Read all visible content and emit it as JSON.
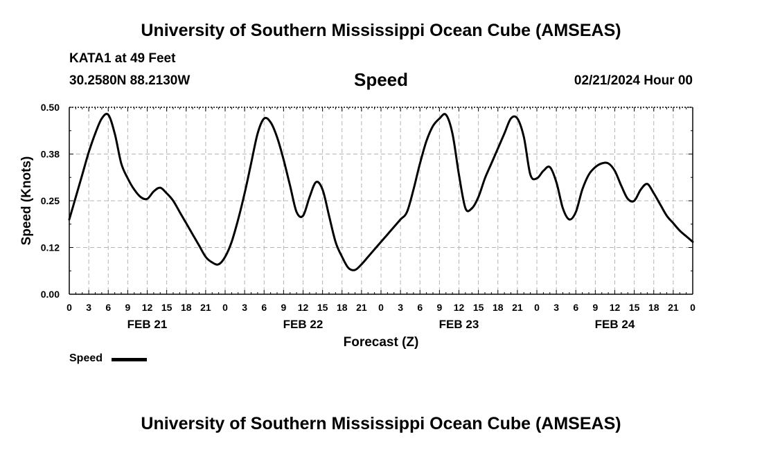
{
  "header": {
    "title": "University of Southern Mississippi Ocean Cube (AMSEAS)",
    "station": "KATA1 at 49 Feet",
    "coords": "30.2580N  88.2130W",
    "plot_title": "Speed",
    "date": "02/21/2024 Hour 00"
  },
  "footer": {
    "title": "University of Southern Mississippi Ocean Cube (AMSEAS)"
  },
  "legend": {
    "label": "Speed"
  },
  "chart_data": {
    "type": "line",
    "title": "Speed",
    "xlabel": "Forecast (Z)",
    "ylabel": "Speed (Knots)",
    "xlim": [
      0,
      96
    ],
    "ylim": [
      0,
      0.5
    ],
    "yticks": [
      0,
      0.125,
      0.25,
      0.375,
      0.5
    ],
    "ytick_labels": [
      "0.00",
      "0.12",
      "0.25",
      "0.38",
      "0.50"
    ],
    "xticks": [
      0,
      3,
      6,
      9,
      12,
      15,
      18,
      21,
      24,
      27,
      30,
      33,
      36,
      39,
      42,
      45,
      48,
      51,
      54,
      57,
      60,
      63,
      66,
      69,
      72,
      75,
      78,
      81,
      84,
      87,
      90,
      93,
      96
    ],
    "xtick_labels": [
      "0",
      "3",
      "6",
      "9",
      "12",
      "15",
      "18",
      "21",
      "0",
      "3",
      "6",
      "9",
      "12",
      "15",
      "18",
      "21",
      "0",
      "3",
      "6",
      "9",
      "12",
      "15",
      "18",
      "21",
      "0",
      "3",
      "6",
      "9",
      "12",
      "15",
      "18",
      "21",
      "0"
    ],
    "day_labels": [
      {
        "hour": 12,
        "label": "FEB 21"
      },
      {
        "hour": 36,
        "label": "FEB 22"
      },
      {
        "hour": 60,
        "label": "FEB 23"
      },
      {
        "hour": 84,
        "label": "FEB 24"
      }
    ],
    "grid": true,
    "series": [
      {
        "name": "Speed",
        "color": "#000000",
        "x": [
          0,
          1,
          2,
          3,
          4,
          5,
          6,
          7,
          8,
          9,
          10,
          11,
          12,
          13,
          14,
          15,
          16,
          17,
          18,
          19,
          20,
          21,
          22,
          23,
          24,
          25,
          26,
          27,
          28,
          29,
          30,
          31,
          32,
          33,
          34,
          35,
          36,
          37,
          38,
          39,
          40,
          41,
          42,
          43,
          44,
          45,
          46,
          47,
          48,
          49,
          50,
          51,
          52,
          53,
          54,
          55,
          56,
          57,
          58,
          59,
          60,
          61,
          62,
          63,
          64,
          65,
          66,
          67,
          68,
          69,
          70,
          71,
          72,
          73,
          74,
          75,
          76,
          77,
          78,
          79,
          80,
          81,
          82,
          83,
          84,
          85,
          86,
          87,
          88,
          89,
          90,
          91,
          92,
          93,
          94,
          95,
          96
        ],
        "values": [
          0.2,
          0.26,
          0.32,
          0.38,
          0.43,
          0.47,
          0.48,
          0.43,
          0.35,
          0.31,
          0.28,
          0.26,
          0.255,
          0.275,
          0.285,
          0.27,
          0.25,
          0.22,
          0.19,
          0.16,
          0.13,
          0.1,
          0.085,
          0.08,
          0.1,
          0.14,
          0.2,
          0.27,
          0.35,
          0.43,
          0.47,
          0.46,
          0.42,
          0.36,
          0.29,
          0.22,
          0.21,
          0.26,
          0.3,
          0.28,
          0.21,
          0.14,
          0.1,
          0.07,
          0.065,
          0.08,
          0.1,
          0.12,
          0.14,
          0.16,
          0.18,
          0.2,
          0.22,
          0.28,
          0.35,
          0.41,
          0.45,
          0.47,
          0.48,
          0.43,
          0.32,
          0.23,
          0.23,
          0.26,
          0.31,
          0.35,
          0.39,
          0.43,
          0.47,
          0.47,
          0.42,
          0.32,
          0.31,
          0.33,
          0.34,
          0.3,
          0.23,
          0.2,
          0.22,
          0.28,
          0.32,
          0.34,
          0.35,
          0.35,
          0.33,
          0.29,
          0.255,
          0.25,
          0.28,
          0.295,
          0.27,
          0.24,
          0.21,
          0.19,
          0.17,
          0.155,
          0.14
        ]
      }
    ]
  }
}
